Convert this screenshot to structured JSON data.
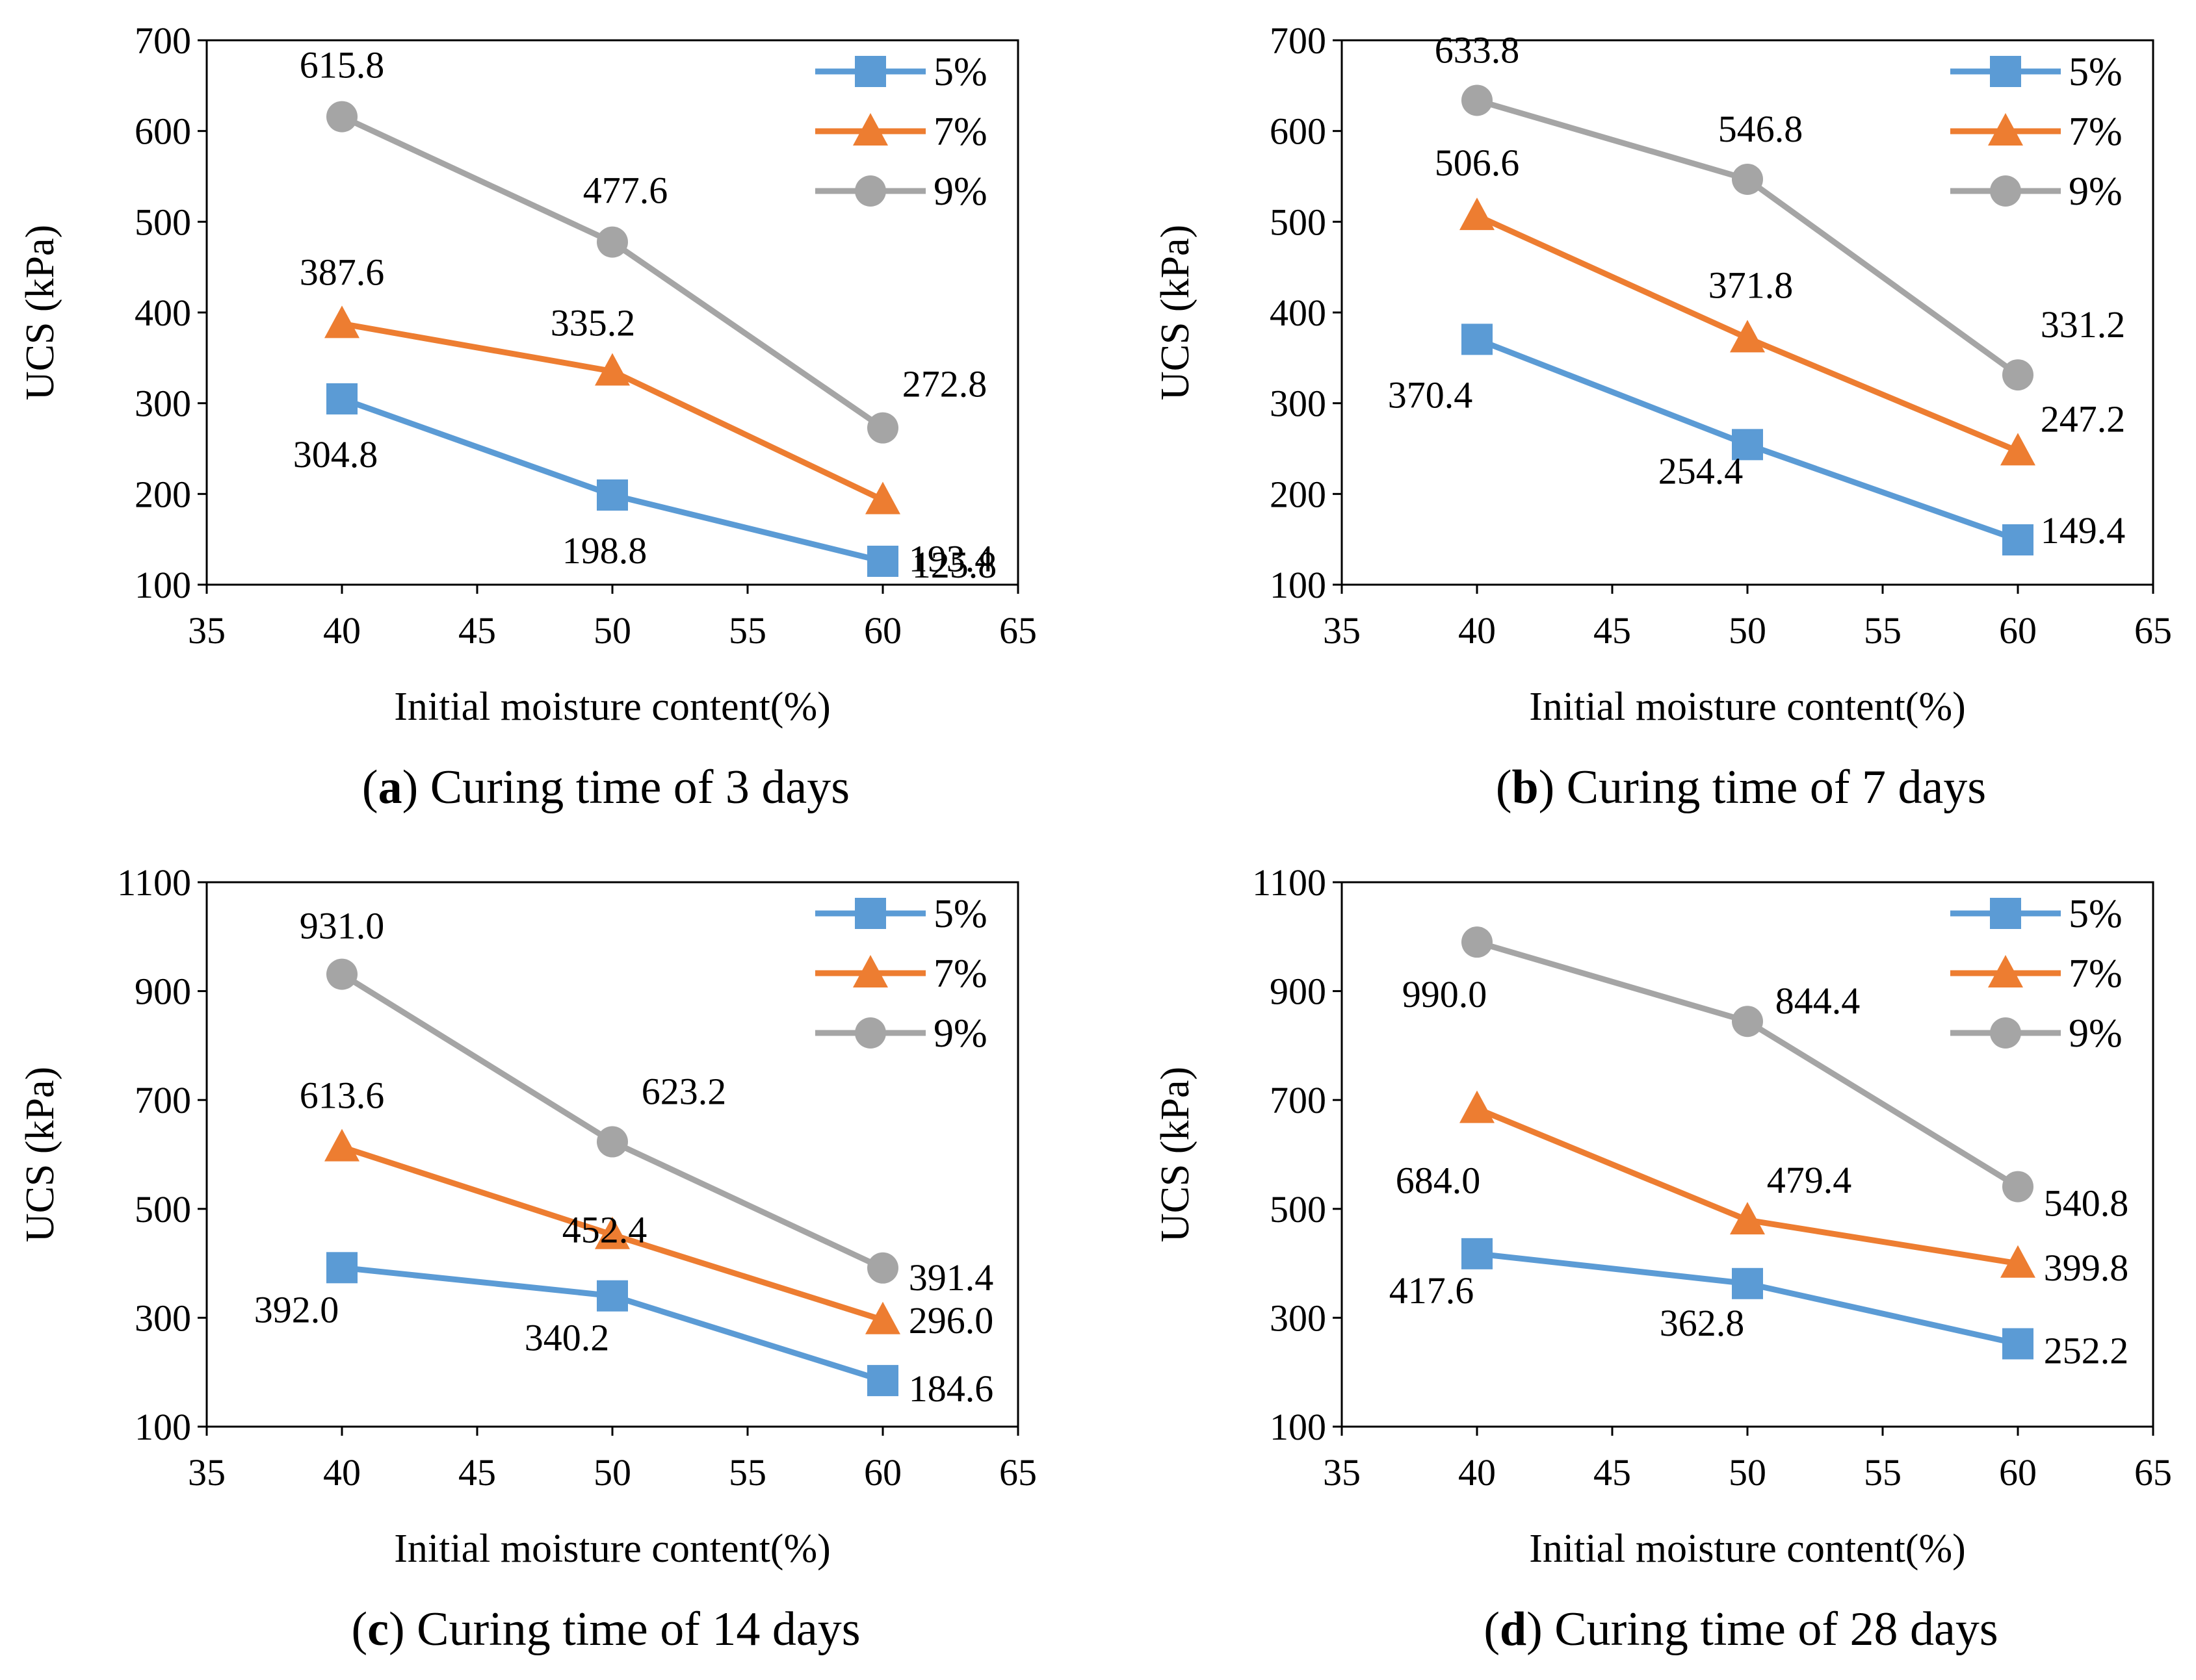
{
  "figure": {
    "series_colors": {
      "5%": "#5b9bd5",
      "7%": "#ed7d31",
      "9%": "#a5a5a5"
    },
    "marker_shapes": {
      "5%": "square",
      "7%": "triangle",
      "9%": "circle"
    }
  },
  "chart_data": [
    {
      "type": "line",
      "panel": "a",
      "title_letter": "a",
      "title_text": "Curing time of 3 days",
      "xlabel": "Initial moisture content(%)",
      "ylabel": "UCS (kPa)",
      "xlim": [
        35,
        65
      ],
      "ylim": [
        100,
        700
      ],
      "xticks": [
        35,
        40,
        45,
        50,
        55,
        60,
        65
      ],
      "yticks": [
        100,
        200,
        300,
        400,
        500,
        600,
        700
      ],
      "x": [
        40,
        50,
        60
      ],
      "legend": "top-right",
      "series": [
        {
          "name": "5%",
          "values": [
            304.8,
            198.8,
            125.8
          ],
          "labels": [
            "304.8",
            "198.8",
            "125.8"
          ]
        },
        {
          "name": "7%",
          "values": [
            387.6,
            335.2,
            193.4
          ],
          "labels": [
            "387.6",
            "335.2",
            "193.4"
          ]
        },
        {
          "name": "9%",
          "values": [
            615.8,
            477.6,
            272.8
          ],
          "labels": [
            "615.8",
            "477.6",
            "272.8"
          ]
        }
      ]
    },
    {
      "type": "line",
      "panel": "b",
      "title_letter": "b",
      "title_text": "Curing time of 7 days",
      "xlabel": "Initial moisture content(%)",
      "ylabel": "UCS (kPa)",
      "xlim": [
        35,
        65
      ],
      "ylim": [
        100,
        700
      ],
      "xticks": [
        35,
        40,
        45,
        50,
        55,
        60,
        65
      ],
      "yticks": [
        100,
        200,
        300,
        400,
        500,
        600,
        700
      ],
      "x": [
        40,
        50,
        60
      ],
      "legend": "top-right",
      "series": [
        {
          "name": "5%",
          "values": [
            370.4,
            254.4,
            149.4
          ],
          "labels": [
            "370.4",
            "254.4",
            "149.4"
          ]
        },
        {
          "name": "7%",
          "values": [
            506.6,
            371.8,
            247.2
          ],
          "labels": [
            "506.6",
            "371.8",
            "247.2"
          ]
        },
        {
          "name": "9%",
          "values": [
            633.8,
            546.8,
            331.2
          ],
          "labels": [
            "633.8",
            "546.8",
            "331.2"
          ]
        }
      ]
    },
    {
      "type": "line",
      "panel": "c",
      "title_letter": "c",
      "title_text": "Curing time of 14 days",
      "xlabel": "Initial moisture content(%)",
      "ylabel": "UCS (kPa)",
      "xlim": [
        35,
        65
      ],
      "ylim": [
        100,
        1100
      ],
      "xticks": [
        35,
        40,
        45,
        50,
        55,
        60,
        65
      ],
      "yticks": [
        100,
        300,
        500,
        700,
        900,
        1100
      ],
      "x": [
        40,
        50,
        60
      ],
      "legend": "top-right",
      "series": [
        {
          "name": "5%",
          "values": [
            392.0,
            340.2,
            184.6
          ],
          "labels": [
            "392.0",
            "340.2",
            "184.6"
          ]
        },
        {
          "name": "7%",
          "values": [
            613.6,
            452.4,
            296.0
          ],
          "labels": [
            "613.6",
            "452.4",
            "296.0"
          ]
        },
        {
          "name": "9%",
          "values": [
            931.0,
            623.2,
            391.4
          ],
          "labels": [
            "931.0",
            "623.2",
            "391.4"
          ]
        }
      ]
    },
    {
      "type": "line",
      "panel": "d",
      "title_letter": "d",
      "title_text": "Curing time of 28 days",
      "xlabel": "Initial moisture content(%)",
      "ylabel": "UCS (kPa)",
      "xlim": [
        35,
        65
      ],
      "ylim": [
        100,
        1100
      ],
      "xticks": [
        35,
        40,
        45,
        50,
        55,
        60,
        65
      ],
      "yticks": [
        100,
        300,
        500,
        700,
        900,
        1100
      ],
      "x": [
        40,
        50,
        60
      ],
      "legend": "top-right",
      "series": [
        {
          "name": "5%",
          "values": [
            417.6,
            362.8,
            252.2
          ],
          "labels": [
            "417.6",
            "362.8",
            "252.2"
          ]
        },
        {
          "name": "7%",
          "values": [
            684.0,
            479.4,
            399.8
          ],
          "labels": [
            "684.0",
            "479.4",
            "399.8"
          ]
        },
        {
          "name": "9%",
          "values": [
            990.0,
            844.4,
            540.8
          ],
          "labels": [
            "990.0",
            "844.4",
            "540.8"
          ]
        }
      ]
    }
  ]
}
